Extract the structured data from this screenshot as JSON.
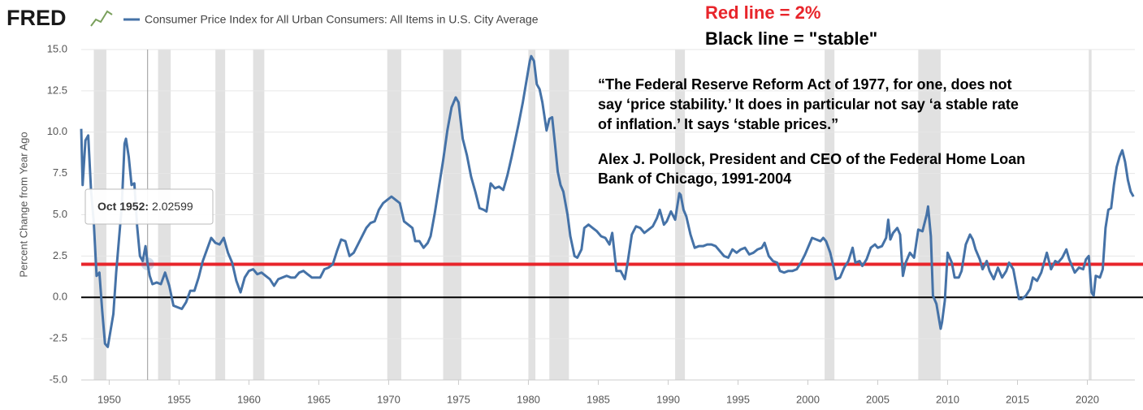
{
  "chart_data": {
    "type": "line",
    "logo": "FRED",
    "notes": [
      {
        "text": "Red line = 2%",
        "color": "#e8252b"
      },
      {
        "text": "Black line = \"stable\"",
        "color": "#000000"
      }
    ],
    "quote": [
      "“The Federal Reserve Reform Act of 1977, for one, does not",
      "say ‘price stability.’ It does in particular not say ‘a stable rate",
      "of inflation.’ It says ‘stable prices.”"
    ],
    "attribution": [
      "Alex J. Pollock, President and CEO of the Federal Home Loan",
      "Bank of Chicago, 1991-2004"
    ],
    "y_label": "Percent Change from Year Ago",
    "x": [
      1948.0,
      1948.1,
      1948.3,
      1948.5,
      1948.7,
      1948.9,
      1949.1,
      1949.3,
      1949.5,
      1949.7,
      1949.9,
      1950.1,
      1950.3,
      1950.5,
      1950.7,
      1950.9,
      1951.1,
      1951.2,
      1951.4,
      1951.6,
      1951.8,
      1952.0,
      1952.2,
      1952.4,
      1952.6,
      1952.75,
      1952.9,
      1953.1,
      1953.4,
      1953.7,
      1954.0,
      1954.3,
      1954.6,
      1954.9,
      1955.2,
      1955.5,
      1955.8,
      1956.1,
      1956.4,
      1956.7,
      1957.0,
      1957.3,
      1957.6,
      1957.9,
      1958.2,
      1958.5,
      1958.8,
      1959.1,
      1959.4,
      1959.7,
      1960.0,
      1960.3,
      1960.6,
      1960.9,
      1961.2,
      1961.5,
      1961.8,
      1962.1,
      1962.4,
      1962.7,
      1963.0,
      1963.3,
      1963.6,
      1963.9,
      1964.2,
      1964.5,
      1964.8,
      1965.1,
      1965.4,
      1965.7,
      1966.0,
      1966.3,
      1966.6,
      1966.9,
      1967.2,
      1967.5,
      1967.8,
      1968.1,
      1968.4,
      1968.7,
      1969.0,
      1969.3,
      1969.6,
      1969.9,
      1970.2,
      1970.5,
      1970.8,
      1971.1,
      1971.4,
      1971.7,
      1971.9,
      1972.2,
      1972.5,
      1972.8,
      1973.0,
      1973.3,
      1973.6,
      1973.9,
      1974.2,
      1974.5,
      1974.8,
      1975.0,
      1975.3,
      1975.6,
      1975.9,
      1976.2,
      1976.5,
      1976.8,
      1977.0,
      1977.3,
      1977.6,
      1977.9,
      1978.2,
      1978.5,
      1978.8,
      1979.0,
      1979.3,
      1979.6,
      1979.9,
      1980.1,
      1980.2,
      1980.4,
      1980.6,
      1980.8,
      1981.0,
      1981.3,
      1981.5,
      1981.7,
      1981.9,
      1982.1,
      1982.3,
      1982.5,
      1982.8,
      1983.0,
      1983.3,
      1983.5,
      1983.8,
      1984.0,
      1984.3,
      1984.6,
      1984.9,
      1985.2,
      1985.5,
      1985.8,
      1986.0,
      1986.3,
      1986.6,
      1986.9,
      1987.1,
      1987.4,
      1987.7,
      1988.0,
      1988.3,
      1988.6,
      1988.9,
      1989.2,
      1989.4,
      1989.7,
      1989.9,
      1990.2,
      1990.5,
      1990.8,
      1990.9,
      1991.1,
      1991.3,
      1991.6,
      1991.9,
      1992.2,
      1992.5,
      1992.8,
      1993.1,
      1993.4,
      1993.7,
      1994.0,
      1994.3,
      1994.6,
      1994.9,
      1995.2,
      1995.5,
      1995.8,
      1996.1,
      1996.4,
      1996.7,
      1996.9,
      1997.2,
      1997.5,
      1997.8,
      1998.0,
      1998.3,
      1998.6,
      1998.9,
      1999.2,
      1999.5,
      1999.8,
      2000.1,
      2000.3,
      2000.6,
      2000.9,
      2001.1,
      2001.3,
      2001.6,
      2001.9,
      2002.0,
      2002.3,
      2002.6,
      2002.9,
      2003.2,
      2003.4,
      2003.7,
      2003.9,
      2004.2,
      2004.5,
      2004.8,
      2005.0,
      2005.3,
      2005.6,
      2005.75,
      2005.9,
      2006.1,
      2006.4,
      2006.6,
      2006.8,
      2007.0,
      2007.3,
      2007.6,
      2007.9,
      2008.2,
      2008.5,
      2008.6,
      2008.8,
      2008.95,
      2009.2,
      2009.5,
      2009.6,
      2009.8,
      2010.0,
      2010.3,
      2010.5,
      2010.8,
      2011.0,
      2011.3,
      2011.6,
      2011.8,
      2012.0,
      2012.3,
      2012.5,
      2012.8,
      2013.0,
      2013.3,
      2013.6,
      2013.9,
      2014.2,
      2014.4,
      2014.7,
      2014.9,
      2015.1,
      2015.3,
      2015.6,
      2015.9,
      2016.1,
      2016.4,
      2016.7,
      2016.9,
      2017.1,
      2017.4,
      2017.7,
      2017.9,
      2018.2,
      2018.5,
      2018.7,
      2018.9,
      2019.1,
      2019.4,
      2019.7,
      2019.9,
      2020.1,
      2020.3,
      2020.45,
      2020.6,
      2020.9,
      2021.1,
      2021.3,
      2021.5,
      2021.7,
      2021.9,
      2022.1,
      2022.3,
      2022.5,
      2022.7,
      2022.9,
      2023.1,
      2023.3
    ],
    "series": [
      {
        "name": "Consumer Price Index for All Urban Consumers: All Items in U.S. City Average",
        "color": "#4572a7",
        "values": [
          10.2,
          6.8,
          9.5,
          9.8,
          6.5,
          4.5,
          1.3,
          1.5,
          -0.8,
          -2.8,
          -3.0,
          -2.0,
          -1.0,
          1.5,
          3.5,
          5.5,
          9.3,
          9.6,
          8.5,
          6.8,
          6.9,
          4.3,
          2.5,
          2.2,
          3.1,
          2.02599,
          1.3,
          0.8,
          0.9,
          0.8,
          1.5,
          0.7,
          -0.5,
          -0.6,
          -0.7,
          -0.3,
          0.4,
          0.4,
          1.2,
          2.2,
          2.9,
          3.6,
          3.3,
          3.2,
          3.6,
          2.7,
          2.1,
          1.0,
          0.3,
          1.2,
          1.6,
          1.7,
          1.4,
          1.5,
          1.3,
          1.1,
          0.7,
          1.1,
          1.2,
          1.3,
          1.2,
          1.2,
          1.5,
          1.6,
          1.4,
          1.2,
          1.2,
          1.2,
          1.7,
          1.8,
          2.0,
          2.8,
          3.5,
          3.4,
          2.5,
          2.7,
          3.2,
          3.7,
          4.2,
          4.5,
          4.6,
          5.3,
          5.7,
          5.9,
          6.1,
          5.9,
          5.7,
          4.6,
          4.4,
          4.2,
          3.4,
          3.4,
          3.0,
          3.3,
          3.7,
          5.1,
          6.7,
          8.3,
          10.1,
          11.5,
          12.1,
          11.8,
          9.6,
          8.6,
          7.3,
          6.4,
          5.4,
          5.3,
          5.2,
          6.9,
          6.6,
          6.7,
          6.5,
          7.4,
          8.5,
          9.3,
          10.5,
          11.8,
          13.3,
          14.3,
          14.6,
          14.3,
          12.9,
          12.6,
          11.8,
          10.1,
          10.8,
          10.9,
          9.3,
          7.6,
          6.8,
          6.4,
          5.0,
          3.7,
          2.5,
          2.4,
          2.9,
          4.2,
          4.4,
          4.2,
          4.0,
          3.7,
          3.6,
          3.2,
          3.9,
          1.6,
          1.6,
          1.1,
          2.1,
          3.8,
          4.3,
          4.2,
          3.9,
          4.1,
          4.3,
          4.8,
          5.3,
          4.4,
          4.6,
          5.2,
          4.7,
          6.3,
          6.2,
          5.3,
          4.9,
          3.8,
          3.0,
          3.1,
          3.1,
          3.2,
          3.2,
          3.1,
          2.8,
          2.5,
          2.4,
          2.9,
          2.7,
          2.9,
          3.0,
          2.6,
          2.7,
          2.9,
          3.0,
          3.3,
          2.5,
          2.2,
          2.1,
          1.6,
          1.5,
          1.6,
          1.6,
          1.7,
          2.1,
          2.6,
          3.2,
          3.6,
          3.5,
          3.4,
          3.6,
          3.4,
          2.7,
          1.6,
          1.1,
          1.2,
          1.8,
          2.2,
          3.0,
          2.1,
          2.2,
          1.9,
          2.3,
          3.0,
          3.2,
          3.0,
          3.1,
          3.6,
          4.7,
          3.5,
          3.9,
          4.2,
          3.8,
          1.3,
          2.1,
          2.7,
          2.4,
          4.1,
          4.0,
          5.0,
          5.5,
          3.7,
          0.1,
          -0.4,
          -1.9,
          -1.5,
          -0.2,
          2.7,
          2.1,
          1.2,
          1.2,
          1.6,
          3.2,
          3.8,
          3.5,
          2.9,
          2.3,
          1.7,
          2.2,
          1.6,
          1.1,
          1.8,
          1.2,
          1.6,
          2.1,
          1.7,
          0.8,
          -0.1,
          -0.1,
          0.1,
          0.5,
          1.2,
          1.0,
          1.5,
          2.1,
          2.7,
          1.7,
          2.2,
          2.1,
          2.4,
          2.9,
          2.3,
          1.9,
          1.5,
          1.8,
          1.7,
          2.3,
          2.5,
          0.3,
          0.1,
          1.3,
          1.2,
          1.7,
          4.2,
          5.3,
          5.4,
          6.8,
          7.9,
          8.5,
          8.9,
          8.2,
          7.1,
          6.4,
          6.1
        ]
      }
    ],
    "recessions": [
      {
        "start": 1948.9,
        "end": 1949.8
      },
      {
        "start": 1953.5,
        "end": 1954.4
      },
      {
        "start": 1957.6,
        "end": 1958.3
      },
      {
        "start": 1960.3,
        "end": 1961.1
      },
      {
        "start": 1969.9,
        "end": 1970.9
      },
      {
        "start": 1973.9,
        "end": 1975.2
      },
      {
        "start": 1980.0,
        "end": 1980.5
      },
      {
        "start": 1981.5,
        "end": 1982.9
      },
      {
        "start": 1990.5,
        "end": 1991.2
      },
      {
        "start": 2001.2,
        "end": 2001.9
      },
      {
        "start": 2007.9,
        "end": 2009.5
      },
      {
        "start": 2020.1,
        "end": 2020.3
      }
    ],
    "recession_color": "#e1e1e1",
    "reference_lines": [
      {
        "value": 2,
        "color": "#e8252b"
      },
      {
        "value": 0,
        "color": "#000000"
      }
    ],
    "tooltip": {
      "label": "Oct 1952:",
      "x": 1952.75,
      "value": 2.02599
    },
    "xlim": [
      1948.0,
      2023.4
    ],
    "xticks": [
      1950,
      1955,
      1960,
      1965,
      1970,
      1975,
      1980,
      1985,
      1990,
      1995,
      2000,
      2005,
      2010,
      2015,
      2020
    ],
    "ylim": [
      -5,
      15
    ],
    "yticks": [
      {
        "value": -5,
        "label": "-5.0"
      },
      -2.5,
      {
        "value": 0,
        "label": "0.0"
      },
      2.5,
      {
        "value": 5,
        "label": "5.0"
      },
      7.5,
      {
        "value": 10,
        "label": "10.0"
      },
      12.5,
      {
        "value": 15,
        "label": "15.0"
      }
    ],
    "grid": true
  }
}
